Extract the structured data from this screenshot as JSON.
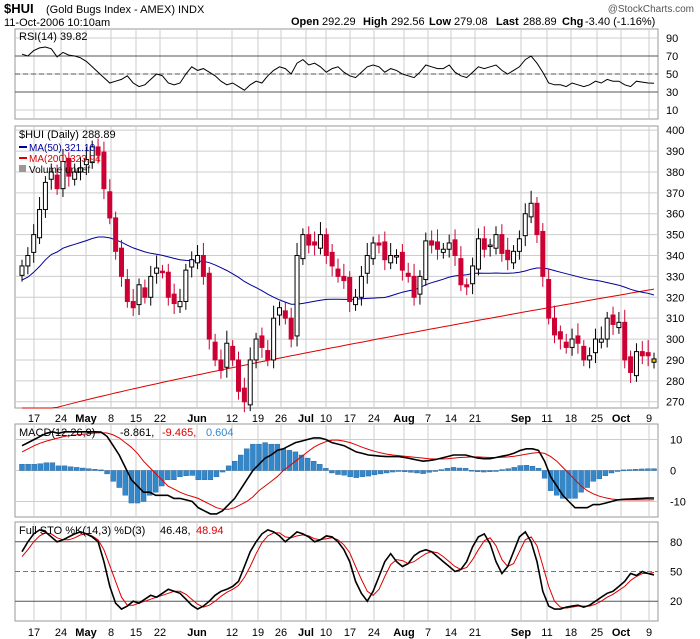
{
  "header": {
    "symbol": "$HUI",
    "name": "(Gold Bugs Index - AMEX)",
    "exchange": "INDX",
    "datetime": "11-Oct-2006 10:10am",
    "open_label": "Open",
    "open": "292.29",
    "high_label": "High",
    "high": "292.56",
    "low_label": "Low",
    "low": "279.08",
    "last_label": "Last",
    "last": "288.89",
    "chg_label": "Chg",
    "chg": "-3.40 (-1.16%)",
    "watermark": "@StockCharts.com"
  },
  "colors": {
    "up": "#000000",
    "down": "#cc0033",
    "ma50": "#000099",
    "ma200": "#dd0000",
    "hist": "#3388cc",
    "signal": "#dd0000",
    "today": "#ffcc00",
    "grid": "#cccccc"
  },
  "x_labels": [
    "17",
    "24",
    "May",
    "8",
    "15",
    "22",
    "Jun",
    "12",
    "19",
    "26",
    "Jul",
    "10",
    "17",
    "24",
    "Aug",
    "7",
    "14",
    "21",
    "Sep",
    "11",
    "18",
    "25",
    "Oct",
    "9"
  ],
  "rsi": {
    "legend": "RSI(14) 39.82",
    "axis": [
      "90",
      "70",
      "50",
      "30",
      "10"
    ],
    "reference_levels": [
      70,
      50,
      30
    ]
  },
  "price": {
    "legend": "$HUI (Daily) 288.89",
    "ma50_legend": "MA(50) 321.10",
    "ma200_legend": "MA(200) 323.94",
    "volume_legend": "Volume undef",
    "axis": [
      "400",
      "390",
      "380",
      "370",
      "360",
      "350",
      "340",
      "330",
      "320",
      "310",
      "300",
      "290",
      "280",
      "270"
    ]
  },
  "macd": {
    "legend_name": "MACD(12,26,9)",
    "legend_macd": "-8.861,",
    "legend_signal": "-9.465,",
    "legend_hist": "0.604",
    "axis": [
      "10",
      "0",
      "-10"
    ]
  },
  "sto": {
    "legend_name": "Full STO %K(14,3) %D(3)",
    "legend_k": "46.48,",
    "legend_d": "48.94",
    "axis": [
      "80",
      "50",
      "20"
    ]
  },
  "chart_data": [
    {
      "type": "candlestick",
      "title": "$HUI (Daily) 288.89",
      "ylim": [
        267,
        402
      ],
      "closes": [
        335,
        340,
        350,
        362,
        375,
        380,
        372,
        385,
        378,
        380,
        382,
        386,
        392,
        388,
        372,
        358,
        342,
        330,
        318,
        315,
        326,
        320,
        330,
        334,
        332,
        320,
        317,
        318,
        333,
        338,
        340,
        330,
        300,
        290,
        285,
        298,
        290,
        275,
        270,
        290,
        300,
        296,
        290,
        310,
        315,
        310,
        300,
        340,
        350,
        345,
        345,
        350,
        340,
        335,
        330,
        328,
        318,
        320,
        330,
        340,
        346,
        345,
        338,
        340,
        340,
        333,
        330,
        320,
        330,
        347,
        345,
        343,
        343,
        346,
        340,
        326,
        325,
        335,
        348,
        343,
        345,
        350,
        341,
        338,
        342,
        348,
        360,
        365,
        350,
        330,
        310,
        302,
        300,
        296,
        300,
        298,
        290,
        292,
        300,
        300,
        310,
        307,
        308,
        290,
        284,
        294,
        292,
        292,
        288.89
      ],
      "ma50_end": 321.1,
      "ma200_end": 323.94
    },
    {
      "type": "line",
      "title": "RSI(14) 39.82",
      "ylim": [
        0,
        100
      ],
      "values": [
        72,
        70,
        76,
        79,
        80,
        78,
        69,
        74,
        71,
        70,
        68,
        64,
        58,
        52,
        46,
        40,
        42,
        44,
        48,
        40,
        36,
        38,
        44,
        50,
        48,
        40,
        38,
        40,
        50,
        58,
        54,
        56,
        52,
        48,
        42,
        38,
        40,
        36,
        32,
        38,
        42,
        40,
        48,
        54,
        58,
        56,
        50,
        62,
        66,
        60,
        62,
        58,
        52,
        56,
        58,
        52,
        48,
        46,
        52,
        58,
        60,
        58,
        52,
        56,
        54,
        50,
        48,
        46,
        52,
        60,
        58,
        56,
        56,
        60,
        52,
        48,
        46,
        52,
        58,
        56,
        58,
        60,
        54,
        50,
        54,
        58,
        66,
        70,
        62,
        52,
        40,
        38,
        38,
        36,
        40,
        38,
        36,
        38,
        42,
        40,
        44,
        42,
        42,
        38,
        36,
        42,
        41,
        40,
        39.82
      ]
    },
    {
      "type": "line",
      "title": "MACD(12,26,9) -8.861, -9.465, 0.604",
      "ylim": [
        -15,
        15
      ],
      "macd": [
        8,
        9,
        10,
        11,
        12,
        12.5,
        12,
        12.5,
        12.5,
        12.5,
        12.5,
        12.5,
        12.5,
        12.4,
        11,
        8,
        5,
        1,
        -3,
        -5,
        -7,
        -7,
        -8,
        -8,
        -8,
        -9,
        -9,
        -9.5,
        -10,
        -12,
        -13,
        -14,
        -14,
        -13,
        -11,
        -9,
        -6,
        -3,
        0,
        2,
        4,
        5,
        6.5,
        7,
        8,
        9,
        9.5,
        10,
        10.5,
        10.5,
        10,
        9,
        8.5,
        8,
        7,
        6,
        5.5,
        5,
        4.8,
        4.6,
        4.5,
        4.5,
        4.5,
        4.2,
        3.8,
        3.4,
        3,
        3.2,
        3.5,
        4,
        4.5,
        5,
        5,
        5,
        4.5,
        4,
        3.8,
        3.8,
        4.2,
        4.6,
        5,
        5.6,
        6.5,
        7,
        7,
        6.5,
        3,
        -2,
        -5,
        -8,
        -10,
        -12,
        -12,
        -12,
        -11,
        -11,
        -10.5,
        -10,
        -9.5,
        -9.3,
        -9.2,
        -9.1,
        -9,
        -8.9,
        -8.861
      ],
      "signal": [
        6,
        7,
        8,
        8.8,
        9.5,
        10,
        10.5,
        11,
        11.3,
        11.5,
        11.7,
        11.9,
        12.1,
        12.2,
        12.1,
        11.5,
        10.5,
        9,
        7.5,
        5.5,
        3,
        1,
        -1,
        -3,
        -5,
        -6,
        -7,
        -7.8,
        -8.4,
        -9,
        -10,
        -11,
        -12,
        -12.5,
        -12.5,
        -12,
        -11,
        -10,
        -8.5,
        -6.5,
        -5,
        -3.5,
        -2,
        0,
        1.5,
        3,
        4.5,
        6,
        7.5,
        8.5,
        9.3,
        9.8,
        9.8,
        9.5,
        9,
        8.3,
        7.5,
        6.8,
        6.2,
        5.7,
        5.3,
        5,
        4.8,
        4.6,
        4.4,
        4.2,
        4,
        3.8,
        3.7,
        3.7,
        3.8,
        4,
        4.2,
        4.3,
        4.4,
        4.4,
        4.3,
        4.2,
        4.2,
        4.3,
        4.4,
        4.6,
        4.9,
        5.3,
        5.6,
        5.8,
        5.5,
        4.5,
        3,
        1,
        -1,
        -3,
        -5,
        -6.5,
        -7.5,
        -8.3,
        -8.8,
        -9.2,
        -9.4,
        -9.5,
        -9.5,
        -9.5,
        -9.5,
        -9.47,
        -9.465
      ],
      "histogram": "macd minus signal"
    },
    {
      "type": "line",
      "title": "Full STO %K(14,3) %D(3) 46.48, 48.94",
      "ylim": [
        0,
        100
      ],
      "k": [
        70,
        80,
        88,
        92,
        90,
        85,
        80,
        82,
        85,
        88,
        90,
        88,
        85,
        80,
        60,
        35,
        18,
        12,
        15,
        20,
        18,
        22,
        26,
        24,
        28,
        32,
        30,
        28,
        22,
        16,
        12,
        15,
        20,
        26,
        30,
        32,
        35,
        40,
        55,
        70,
        80,
        88,
        92,
        90,
        86,
        80,
        85,
        90,
        88,
        85,
        80,
        82,
        86,
        85,
        80,
        72,
        60,
        40,
        28,
        20,
        30,
        45,
        60,
        68,
        60,
        55,
        58,
        66,
        70,
        72,
        70,
        65,
        60,
        55,
        50,
        52,
        60,
        75,
        85,
        88,
        78,
        60,
        48,
        55,
        70,
        85,
        90,
        80,
        60,
        30,
        15,
        12,
        12,
        14,
        15,
        16,
        14,
        16,
        20,
        24,
        28,
        30,
        35,
        40,
        48,
        46,
        50,
        48,
        46.48
      ],
      "d": [
        65,
        72,
        80,
        86,
        89,
        88,
        84,
        82,
        82,
        84,
        87,
        88,
        86,
        82,
        72,
        56,
        40,
        24,
        16,
        16,
        18,
        20,
        22,
        24,
        26,
        28,
        30,
        30,
        27,
        22,
        17,
        14,
        16,
        20,
        25,
        29,
        32,
        36,
        44,
        55,
        68,
        79,
        86,
        89,
        89,
        85,
        84,
        86,
        87,
        86,
        83,
        82,
        83,
        84,
        82,
        77,
        69,
        55,
        42,
        30,
        26,
        32,
        45,
        57,
        62,
        61,
        58,
        60,
        64,
        68,
        70,
        69,
        65,
        60,
        55,
        52,
        54,
        62,
        72,
        81,
        84,
        76,
        62,
        55,
        58,
        70,
        82,
        85,
        76,
        56,
        35,
        20,
        14,
        13,
        14,
        15,
        15,
        15,
        17,
        20,
        24,
        27,
        31,
        35,
        41,
        45,
        48,
        48,
        48.94
      ]
    }
  ]
}
